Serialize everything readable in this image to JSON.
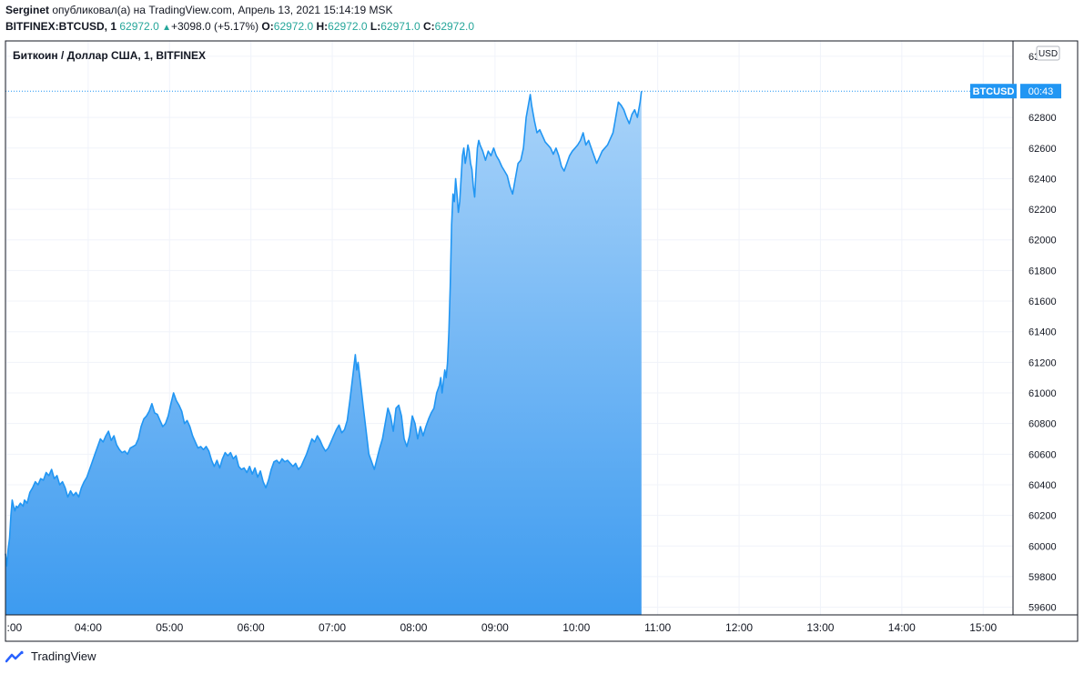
{
  "header": {
    "author": "Serginet",
    "published_text": "опубликовал(а) на TradingView.com, Апрель 13, 2021 15:14:19 MSK",
    "symbol": "BITFINEX:BTCUSD, 1",
    "last": "62972.0",
    "change_arrow": "▲",
    "change": "+3098.0 (+5.17%)",
    "o_label": "O:",
    "o": "62972.0",
    "h_label": "H:",
    "h": "62972.0",
    "l_label": "L:",
    "l": "62971.0",
    "c_label": "C:",
    "c": "62972.0"
  },
  "legend_title": "Биткоин / Доллар США, 1, BITFINEX",
  "currency": "USD",
  "price_tag": {
    "symbol": "BTCUSD",
    "countdown": "00:43",
    "value": 62972
  },
  "footer": {
    "brand": "TradingView",
    "logo_icon": "tradingview-logo-icon"
  },
  "colors": {
    "line": "#2196f3",
    "fill_top": "#a9d3f9",
    "fill_bottom": "#3d9bf0",
    "tag": "#2196f3"
  },
  "chart_data": {
    "type": "area",
    "title": "Биткоин / Доллар США, 1, BITFINEX",
    "xlabel": "",
    "ylabel": "",
    "x_ticks": [
      {
        "label": ":00",
        "t": 180
      },
      {
        "label": "04:00",
        "t": 240
      },
      {
        "label": "05:00",
        "t": 300
      },
      {
        "label": "06:00",
        "t": 360
      },
      {
        "label": "07:00",
        "t": 420
      },
      {
        "label": "08:00",
        "t": 480
      },
      {
        "label": "09:00",
        "t": 540
      },
      {
        "label": "10:00",
        "t": 600
      },
      {
        "label": "11:00",
        "t": 660
      },
      {
        "label": "12:00",
        "t": 720
      },
      {
        "label": "13:00",
        "t": 780
      },
      {
        "label": "14:00",
        "t": 840
      },
      {
        "label": "15:00",
        "t": 900
      }
    ],
    "y_ticks": [
      59600,
      59800,
      60000,
      60200,
      60400,
      60600,
      60800,
      61000,
      61200,
      61400,
      61600,
      61800,
      62000,
      62200,
      62400,
      62600,
      62800,
      63200
    ],
    "xlim": [
      179,
      922
    ],
    "ylim": [
      59550,
      63300
    ],
    "grid": true,
    "points": [
      [
        179,
        59950
      ],
      [
        180,
        59870
      ],
      [
        181,
        59980
      ],
      [
        182,
        60050
      ],
      [
        183,
        60200
      ],
      [
        184,
        60300
      ],
      [
        185,
        60260
      ],
      [
        186,
        60230
      ],
      [
        187,
        60260
      ],
      [
        188,
        60250
      ],
      [
        190,
        60280
      ],
      [
        192,
        60260
      ],
      [
        193,
        60300
      ],
      [
        195,
        60280
      ],
      [
        197,
        60350
      ],
      [
        199,
        60380
      ],
      [
        201,
        60420
      ],
      [
        203,
        60400
      ],
      [
        205,
        60440
      ],
      [
        207,
        60430
      ],
      [
        209,
        60480
      ],
      [
        211,
        60460
      ],
      [
        213,
        60500
      ],
      [
        215,
        60440
      ],
      [
        217,
        60460
      ],
      [
        219,
        60400
      ],
      [
        221,
        60420
      ],
      [
        223,
        60380
      ],
      [
        225,
        60320
      ],
      [
        227,
        60360
      ],
      [
        229,
        60330
      ],
      [
        231,
        60350
      ],
      [
        233,
        60320
      ],
      [
        235,
        60380
      ],
      [
        237,
        60420
      ],
      [
        239,
        60450
      ],
      [
        241,
        60500
      ],
      [
        243,
        60550
      ],
      [
        245,
        60600
      ],
      [
        247,
        60650
      ],
      [
        249,
        60700
      ],
      [
        251,
        60680
      ],
      [
        253,
        60720
      ],
      [
        255,
        60750
      ],
      [
        257,
        60690
      ],
      [
        259,
        60720
      ],
      [
        261,
        60660
      ],
      [
        263,
        60630
      ],
      [
        265,
        60610
      ],
      [
        267,
        60620
      ],
      [
        269,
        60600
      ],
      [
        271,
        60640
      ],
      [
        273,
        60650
      ],
      [
        275,
        60660
      ],
      [
        277,
        60700
      ],
      [
        279,
        60780
      ],
      [
        281,
        60830
      ],
      [
        283,
        60850
      ],
      [
        285,
        60880
      ],
      [
        287,
        60930
      ],
      [
        289,
        60870
      ],
      [
        291,
        60860
      ],
      [
        293,
        60820
      ],
      [
        295,
        60780
      ],
      [
        297,
        60800
      ],
      [
        299,
        60850
      ],
      [
        301,
        60930
      ],
      [
        303,
        61000
      ],
      [
        305,
        60950
      ],
      [
        307,
        60920
      ],
      [
        309,
        60880
      ],
      [
        311,
        60800
      ],
      [
        313,
        60820
      ],
      [
        315,
        60780
      ],
      [
        317,
        60720
      ],
      [
        319,
        60680
      ],
      [
        321,
        60640
      ],
      [
        323,
        60650
      ],
      [
        325,
        60630
      ],
      [
        327,
        60650
      ],
      [
        329,
        60620
      ],
      [
        331,
        60560
      ],
      [
        333,
        60520
      ],
      [
        335,
        60560
      ],
      [
        337,
        60510
      ],
      [
        339,
        60570
      ],
      [
        341,
        60610
      ],
      [
        343,
        60590
      ],
      [
        345,
        60610
      ],
      [
        347,
        60570
      ],
      [
        349,
        60590
      ],
      [
        351,
        60520
      ],
      [
        353,
        60500
      ],
      [
        355,
        60510
      ],
      [
        357,
        60480
      ],
      [
        359,
        60520
      ],
      [
        361,
        60470
      ],
      [
        363,
        60510
      ],
      [
        365,
        60450
      ],
      [
        367,
        60490
      ],
      [
        369,
        60420
      ],
      [
        371,
        60380
      ],
      [
        373,
        60430
      ],
      [
        375,
        60500
      ],
      [
        377,
        60550
      ],
      [
        379,
        60560
      ],
      [
        381,
        60540
      ],
      [
        383,
        60570
      ],
      [
        385,
        60550
      ],
      [
        387,
        60560
      ],
      [
        389,
        60540
      ],
      [
        391,
        60520
      ],
      [
        393,
        60540
      ],
      [
        395,
        60500
      ],
      [
        397,
        60520
      ],
      [
        399,
        60560
      ],
      [
        401,
        60600
      ],
      [
        403,
        60650
      ],
      [
        405,
        60700
      ],
      [
        407,
        60680
      ],
      [
        409,
        60720
      ],
      [
        411,
        60690
      ],
      [
        413,
        60650
      ],
      [
        415,
        60620
      ],
      [
        417,
        60640
      ],
      [
        419,
        60680
      ],
      [
        421,
        60720
      ],
      [
        423,
        60760
      ],
      [
        425,
        60790
      ],
      [
        427,
        60740
      ],
      [
        429,
        60760
      ],
      [
        431,
        60820
      ],
      [
        433,
        60950
      ],
      [
        435,
        61100
      ],
      [
        437,
        61250
      ],
      [
        438,
        61150
      ],
      [
        439,
        61200
      ],
      [
        441,
        61050
      ],
      [
        443,
        60900
      ],
      [
        445,
        60750
      ],
      [
        447,
        60600
      ],
      [
        449,
        60550
      ],
      [
        451,
        60500
      ],
      [
        453,
        60570
      ],
      [
        455,
        60640
      ],
      [
        457,
        60700
      ],
      [
        459,
        60800
      ],
      [
        461,
        60900
      ],
      [
        463,
        60850
      ],
      [
        465,
        60750
      ],
      [
        467,
        60900
      ],
      [
        469,
        60920
      ],
      [
        471,
        60850
      ],
      [
        473,
        60700
      ],
      [
        475,
        60650
      ],
      [
        477,
        60720
      ],
      [
        479,
        60850
      ],
      [
        481,
        60800
      ],
      [
        483,
        60700
      ],
      [
        485,
        60780
      ],
      [
        487,
        60720
      ],
      [
        489,
        60780
      ],
      [
        491,
        60830
      ],
      [
        493,
        60870
      ],
      [
        495,
        60900
      ],
      [
        497,
        61000
      ],
      [
        499,
        61050
      ],
      [
        500,
        61100
      ],
      [
        501,
        61000
      ],
      [
        503,
        61150
      ],
      [
        504,
        61100
      ],
      [
        505,
        61200
      ],
      [
        506,
        61400
      ],
      [
        507,
        61700
      ],
      [
        508,
        62100
      ],
      [
        509,
        62300
      ],
      [
        510,
        62250
      ],
      [
        511,
        62400
      ],
      [
        512,
        62300
      ],
      [
        513,
        62180
      ],
      [
        514,
        62250
      ],
      [
        515,
        62400
      ],
      [
        516,
        62550
      ],
      [
        517,
        62600
      ],
      [
        518,
        62500
      ],
      [
        519,
        62550
      ],
      [
        520,
        62620
      ],
      [
        521,
        62580
      ],
      [
        522,
        62500
      ],
      [
        523,
        62460
      ],
      [
        524,
        62350
      ],
      [
        525,
        62280
      ],
      [
        526,
        62450
      ],
      [
        527,
        62600
      ],
      [
        528,
        62650
      ],
      [
        529,
        62620
      ],
      [
        531,
        62580
      ],
      [
        533,
        62520
      ],
      [
        535,
        62580
      ],
      [
        537,
        62550
      ],
      [
        539,
        62600
      ],
      [
        541,
        62550
      ],
      [
        543,
        62520
      ],
      [
        545,
        62480
      ],
      [
        547,
        62450
      ],
      [
        549,
        62420
      ],
      [
        551,
        62350
      ],
      [
        553,
        62300
      ],
      [
        555,
        62400
      ],
      [
        557,
        62500
      ],
      [
        559,
        62520
      ],
      [
        561,
        62600
      ],
      [
        563,
        62800
      ],
      [
        565,
        62900
      ],
      [
        566,
        62950
      ],
      [
        567,
        62880
      ],
      [
        569,
        62780
      ],
      [
        571,
        62700
      ],
      [
        573,
        62720
      ],
      [
        575,
        62680
      ],
      [
        577,
        62640
      ],
      [
        579,
        62620
      ],
      [
        581,
        62600
      ],
      [
        583,
        62560
      ],
      [
        585,
        62600
      ],
      [
        587,
        62550
      ],
      [
        589,
        62480
      ],
      [
        591,
        62450
      ],
      [
        593,
        62500
      ],
      [
        595,
        62550
      ],
      [
        597,
        62580
      ],
      [
        599,
        62600
      ],
      [
        601,
        62620
      ],
      [
        603,
        62650
      ],
      [
        605,
        62700
      ],
      [
        607,
        62620
      ],
      [
        609,
        62650
      ],
      [
        611,
        62600
      ],
      [
        613,
        62550
      ],
      [
        615,
        62500
      ],
      [
        617,
        62540
      ],
      [
        619,
        62580
      ],
      [
        621,
        62600
      ],
      [
        623,
        62620
      ],
      [
        625,
        62660
      ],
      [
        627,
        62700
      ],
      [
        629,
        62800
      ],
      [
        631,
        62900
      ],
      [
        633,
        62880
      ],
      [
        635,
        62850
      ],
      [
        637,
        62800
      ],
      [
        639,
        62760
      ],
      [
        641,
        62820
      ],
      [
        643,
        62850
      ],
      [
        645,
        62800
      ],
      [
        647,
        62900
      ],
      [
        648,
        62972
      ]
    ]
  }
}
